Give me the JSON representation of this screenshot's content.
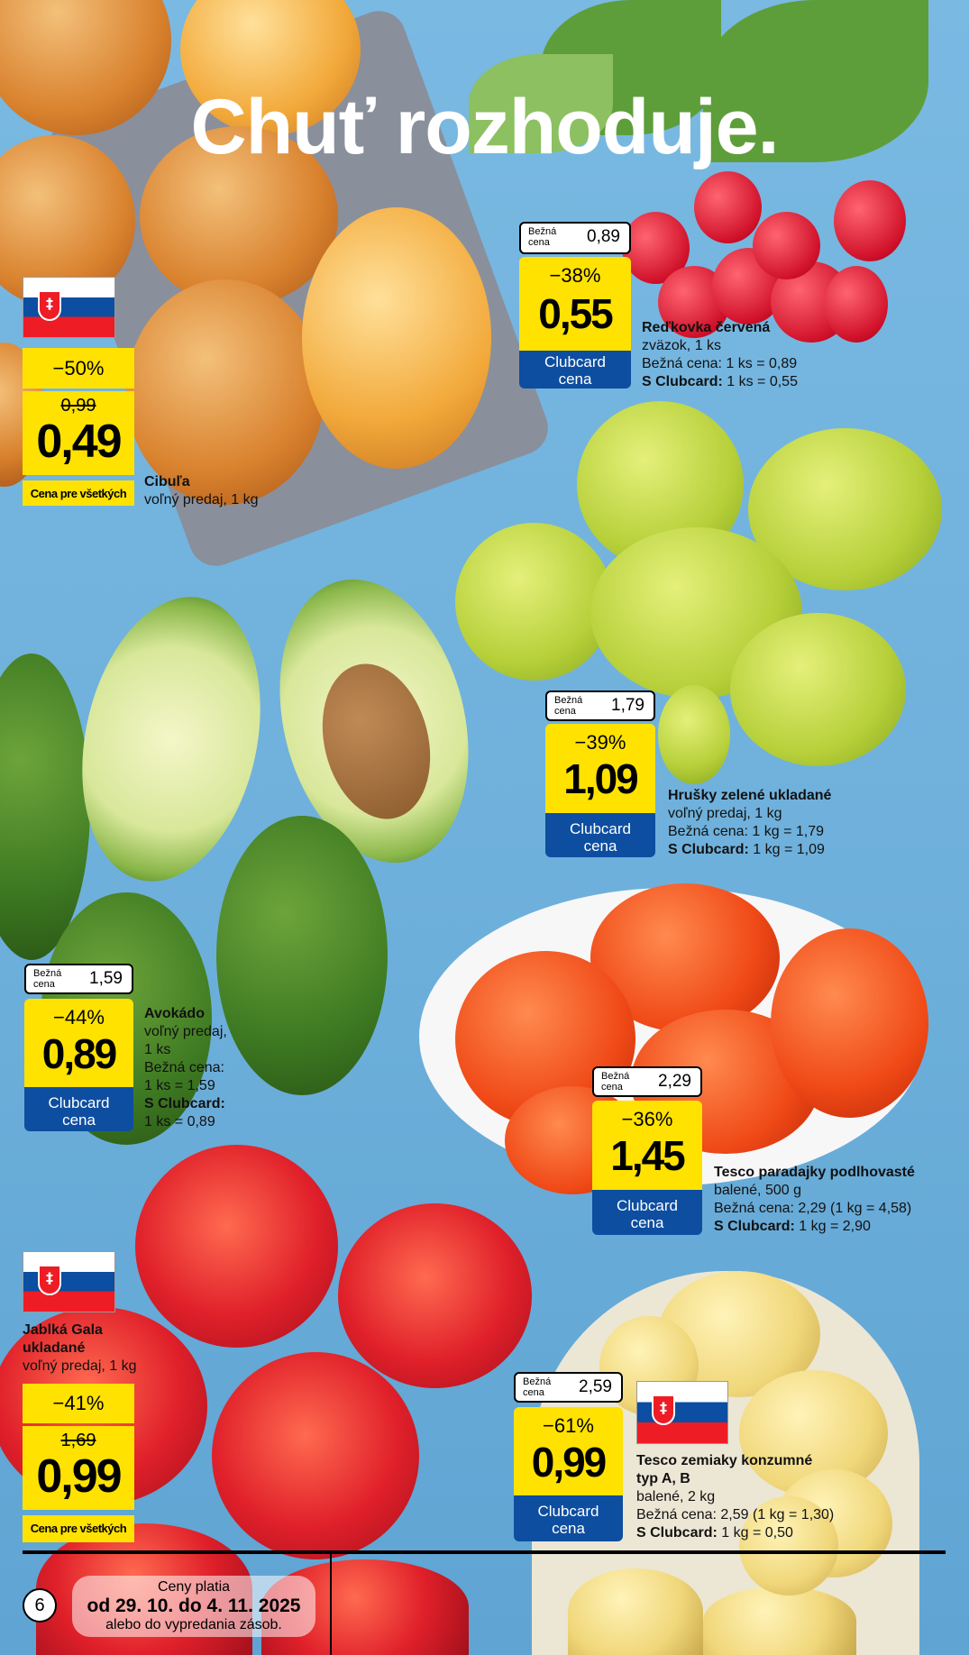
{
  "title": "Chuť rozhoduje.",
  "labels": {
    "regular_price": "Bežná cena",
    "clubcard_price": "Clubcard cena",
    "price_for_all": "Cena pre všetkých"
  },
  "colors": {
    "yellow": "#ffe200",
    "clubcard_blue": "#0d4ea0",
    "background": "#6fb1dc"
  },
  "products": {
    "onion": {
      "name": "Cibuľa",
      "detail": "voľný predaj, 1 kg",
      "discount": "−50%",
      "old_price": "0,99",
      "price": "0,49",
      "origin_flag": "slovakia-flag"
    },
    "radish": {
      "name": "Reďkovka červená",
      "detail": "zväzok, 1 ks",
      "regular_line": "Bežná cena: 1 ks = 0,89",
      "club_label": "S Clubcard:",
      "club_line": "1 ks = 0,55",
      "regular_price": "0,89",
      "discount": "−38%",
      "price": "0,55"
    },
    "pears": {
      "name": "Hrušky zelené ukladané",
      "detail": "voľný predaj, 1 kg",
      "regular_line": "Bežná cena: 1 kg = 1,79",
      "club_label": "S Clubcard:",
      "club_line": "1 kg = 1,09",
      "regular_price": "1,79",
      "discount": "−39%",
      "price": "1,09"
    },
    "avocado": {
      "name": "Avokádo",
      "detail1": "voľný predaj,",
      "detail2": "1 ks",
      "regular_label": "Bežná cena:",
      "regular_line": "1 ks = 1,59",
      "club_label": "S Clubcard:",
      "club_line": "1 ks = 0,89",
      "regular_price": "1,59",
      "discount": "−44%",
      "price": "0,89"
    },
    "tomatoes": {
      "name": "Tesco paradajky podlhovasté",
      "detail": "balené, 500 g",
      "regular_line": "Bežná cena: 2,29 (1 kg = 4,58)",
      "club_label": "S Clubcard:",
      "club_line": "1 kg = 2,90",
      "regular_price": "2,29",
      "discount": "−36%",
      "price": "1,45"
    },
    "apples": {
      "name1": "Jablká Gala",
      "name2": "ukladané",
      "detail": "voľný predaj, 1 kg",
      "discount": "−41%",
      "old_price": "1,69",
      "price": "0,99",
      "origin_flag": "slovakia-flag"
    },
    "potatoes": {
      "name1": "Tesco zemiaky konzumné",
      "name2": "typ A, B",
      "detail": "balené, 2 kg",
      "regular_line": "Bežná cena: 2,59 (1 kg = 1,30)",
      "club_label": "S Clubcard:",
      "club_line": "1 kg = 0,50",
      "regular_price": "2,59",
      "discount": "−61%",
      "price": "0,99",
      "origin_flag": "slovakia-flag"
    }
  },
  "footer": {
    "page_number": "6",
    "line1": "Ceny platia",
    "line2": "od 29. 10. do 4. 11. 2025",
    "line3": "alebo do vypredania zásob."
  }
}
